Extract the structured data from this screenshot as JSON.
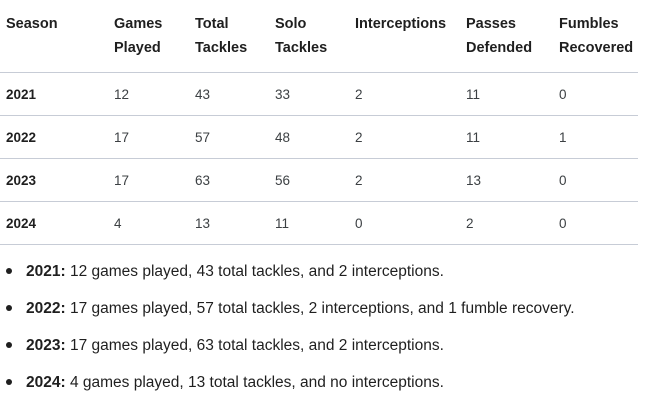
{
  "table": {
    "headers": [
      [
        "Season"
      ],
      [
        "Games",
        "Played"
      ],
      [
        "Total",
        "Tackles"
      ],
      [
        "Solo",
        "Tackles"
      ],
      [
        "Interceptions"
      ],
      [
        "Passes",
        "Defended"
      ],
      [
        "Fumbles",
        "Recovered"
      ]
    ],
    "rows": [
      [
        "2021",
        "12",
        "43",
        "33",
        "2",
        "11",
        "0"
      ],
      [
        "2022",
        "17",
        "57",
        "48",
        "2",
        "11",
        "1"
      ],
      [
        "2023",
        "17",
        "63",
        "56",
        "2",
        "13",
        "0"
      ],
      [
        "2024",
        "4",
        "13",
        "11",
        "0",
        "2",
        "0"
      ]
    ]
  },
  "summary": [
    {
      "year": "2021:",
      "text": " 12 games played, 43 total tackles, and 2 interceptions."
    },
    {
      "year": "2022:",
      "text": " 17 games played, 57 total tackles, 2 interceptions, and 1 fumble recovery."
    },
    {
      "year": "2023:",
      "text": " 17 games played, 63 total tackles, and 2 interceptions."
    },
    {
      "year": "2024:",
      "text": " 4 games played, 13 total tackles, and no interceptions."
    }
  ]
}
